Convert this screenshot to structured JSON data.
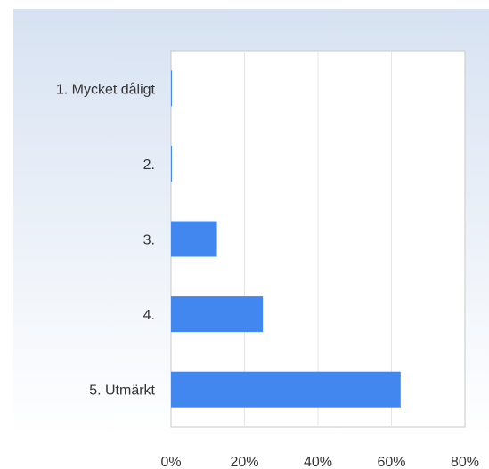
{
  "chart_data": {
    "type": "bar",
    "orientation": "horizontal",
    "categories": [
      "1. Mycket dåligt",
      "2.",
      "3.",
      "4.",
      "5. Utmärkt"
    ],
    "values": [
      0,
      0,
      12.5,
      25,
      62.5
    ],
    "xlim": [
      0,
      80
    ],
    "x_ticks": [
      "0%",
      "20%",
      "40%",
      "60%",
      "80%"
    ],
    "grid": true,
    "title": "",
    "xlabel": "",
    "ylabel": ""
  },
  "colors": {
    "bar": "#4287f0",
    "gradient_top": "#d7e2f2",
    "gradient_bottom": "#ffffff",
    "plot_bg": "#ffffff",
    "grid": "#e6e6e6",
    "axis": "#c8c8c8"
  }
}
